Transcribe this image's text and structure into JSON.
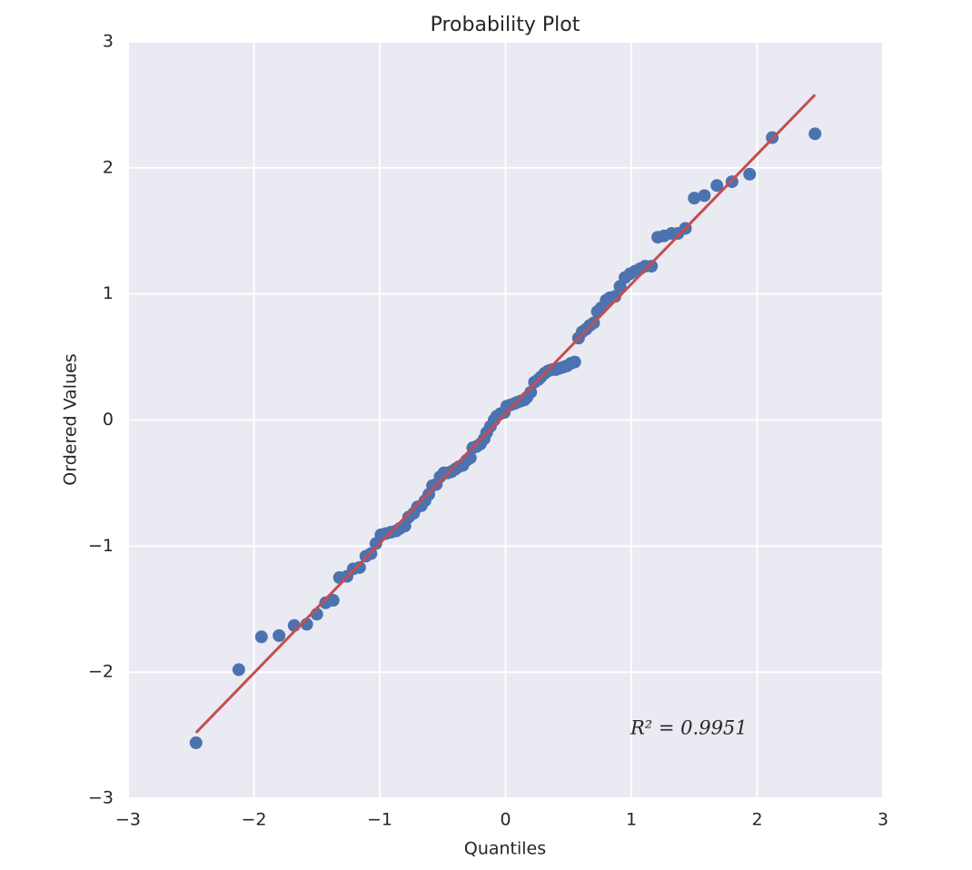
{
  "chart_data": {
    "type": "scatter",
    "title": "Probability Plot",
    "xlabel": "Quantiles",
    "ylabel": "Ordered Values",
    "annotation": "R² = 0.9951",
    "xlim": [
      -3,
      3
    ],
    "ylim": [
      -3,
      3
    ],
    "xticks": [
      {
        "value": -3,
        "label": "−3"
      },
      {
        "value": -2,
        "label": "−2"
      },
      {
        "value": -1,
        "label": "−1"
      },
      0,
      1,
      2,
      3
    ],
    "yticks": [
      {
        "value": -3,
        "label": "−3"
      },
      {
        "value": -2,
        "label": "−2"
      },
      {
        "value": -1,
        "label": "−1"
      },
      0,
      1,
      2,
      3
    ],
    "grid": true,
    "background": "#eaeaf2",
    "series": [
      {
        "type": "scatter",
        "color": "#4c72b0",
        "x": [
          -2.46,
          -2.12,
          -1.94,
          -1.8,
          -1.68,
          -1.58,
          -1.5,
          -1.43,
          -1.37,
          -1.32,
          -1.26,
          -1.21,
          -1.16,
          -1.11,
          -1.07,
          -1.03,
          -0.99,
          -0.95,
          -0.91,
          -0.87,
          -0.84,
          -0.8,
          -0.77,
          -0.73,
          -0.7,
          -0.67,
          -0.64,
          -0.61,
          -0.58,
          -0.55,
          -0.52,
          -0.49,
          -0.46,
          -0.43,
          -0.4,
          -0.37,
          -0.34,
          -0.31,
          -0.28,
          -0.26,
          -0.23,
          -0.2,
          -0.17,
          -0.15,
          -0.12,
          -0.09,
          -0.07,
          -0.04,
          -0.01,
          0.01,
          0.04,
          0.07,
          0.09,
          0.12,
          0.15,
          0.17,
          0.2,
          0.23,
          0.26,
          0.28,
          0.31,
          0.34,
          0.37,
          0.4,
          0.43,
          0.46,
          0.49,
          0.52,
          0.55,
          0.58,
          0.61,
          0.64,
          0.67,
          0.7,
          0.73,
          0.76,
          0.8,
          0.83,
          0.87,
          0.91,
          0.95,
          0.99,
          1.03,
          1.07,
          1.11,
          1.16,
          1.21,
          1.26,
          1.32,
          1.37,
          1.43,
          1.5,
          1.58,
          1.68,
          1.8,
          1.94,
          2.12,
          2.46
        ],
        "values": [
          -2.56,
          -1.98,
          -1.72,
          -1.71,
          -1.63,
          -1.62,
          -1.54,
          -1.45,
          -1.43,
          -1.25,
          -1.24,
          -1.18,
          -1.17,
          -1.08,
          -1.06,
          -0.98,
          -0.91,
          -0.9,
          -0.89,
          -0.88,
          -0.86,
          -0.84,
          -0.77,
          -0.74,
          -0.69,
          -0.68,
          -0.64,
          -0.59,
          -0.52,
          -0.51,
          -0.45,
          -0.42,
          -0.42,
          -0.41,
          -0.39,
          -0.37,
          -0.36,
          -0.32,
          -0.3,
          -0.22,
          -0.21,
          -0.19,
          -0.15,
          -0.1,
          -0.05,
          0.0,
          0.03,
          0.05,
          0.06,
          0.11,
          0.12,
          0.13,
          0.14,
          0.15,
          0.16,
          0.18,
          0.22,
          0.3,
          0.32,
          0.34,
          0.37,
          0.39,
          0.4,
          0.4,
          0.41,
          0.42,
          0.43,
          0.45,
          0.46,
          0.65,
          0.7,
          0.72,
          0.75,
          0.77,
          0.86,
          0.89,
          0.95,
          0.97,
          0.98,
          1.06,
          1.13,
          1.16,
          1.18,
          1.2,
          1.22,
          1.22,
          1.45,
          1.46,
          1.48,
          1.48,
          1.52,
          1.76,
          1.78,
          1.86,
          1.89,
          1.95,
          2.24,
          2.27
        ]
      },
      {
        "type": "line",
        "color": "#c44e52",
        "x": [
          -2.46,
          2.46
        ],
        "values": [
          -2.48,
          2.58
        ]
      }
    ]
  }
}
